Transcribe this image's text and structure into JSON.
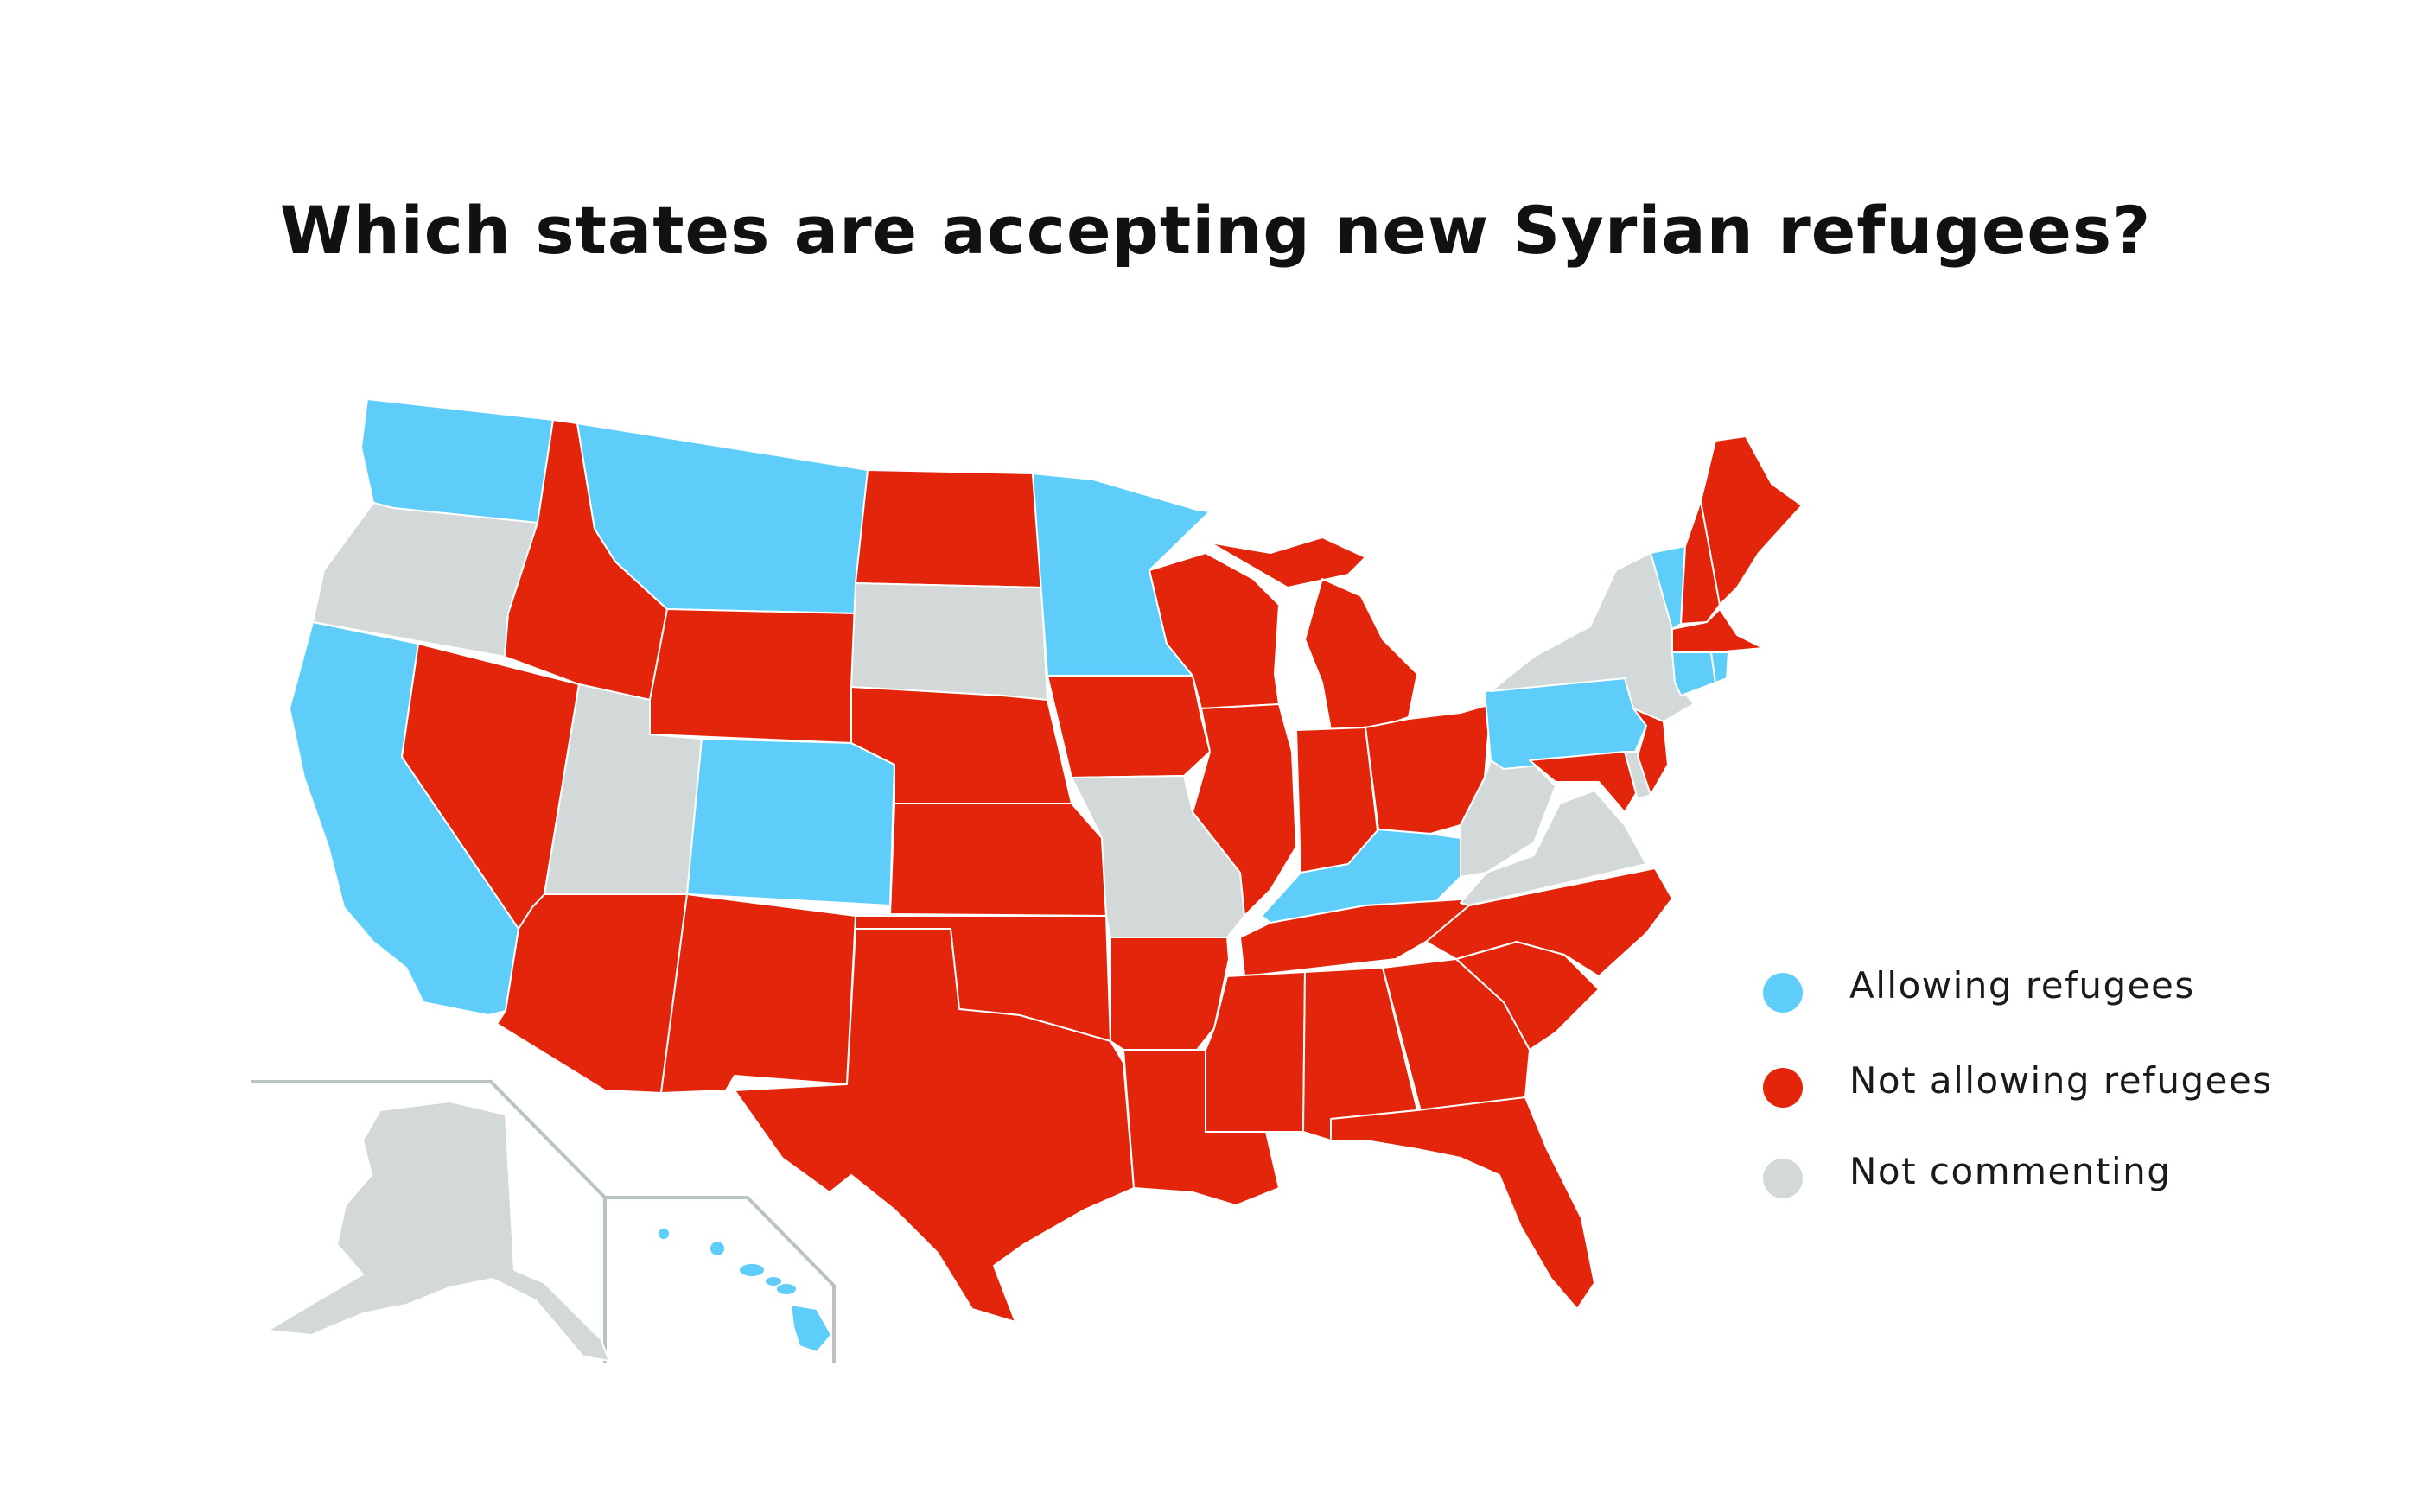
{
  "title": "Which states are accepting new Syrian refugees?",
  "colors": {
    "allowing": "#5fcdf9",
    "not_allowing": "#e3260b",
    "not_commenting": "#d3d9d8",
    "inset_border": "#b9c2c4"
  },
  "legend": [
    {
      "key": "allowing",
      "label": "Allowing refugees"
    },
    {
      "key": "not_allowing",
      "label": "Not allowing refugees"
    },
    {
      "key": "not_commenting",
      "label": "Not commenting"
    }
  ],
  "state_status": {
    "WA": "allowing",
    "OR": "not_commenting",
    "CA": "allowing",
    "NV": "not_allowing",
    "ID": "not_allowing",
    "MT": "allowing",
    "WY": "not_allowing",
    "UT": "not_commenting",
    "CO": "allowing",
    "AZ": "not_allowing",
    "NM": "not_allowing",
    "ND": "not_allowing",
    "SD": "not_commenting",
    "NE": "not_allowing",
    "KS": "not_allowing",
    "OK": "not_allowing",
    "TX": "not_allowing",
    "MN": "allowing",
    "IA": "not_allowing",
    "MO": "not_commenting",
    "AR": "not_allowing",
    "LA": "not_allowing",
    "WI": "not_allowing",
    "IL": "not_allowing",
    "MI": "not_allowing",
    "IN": "not_allowing",
    "OH": "not_allowing",
    "KY": "allowing",
    "TN": "not_allowing",
    "MS": "not_allowing",
    "AL": "not_allowing",
    "GA": "not_allowing",
    "FL": "not_allowing",
    "SC": "not_allowing",
    "NC": "not_allowing",
    "VA": "not_commenting",
    "WV": "not_commenting",
    "MD": "not_allowing",
    "DE": "not_commenting",
    "PA": "allowing",
    "NJ": "not_allowing",
    "NY": "not_commenting",
    "CT": "allowing",
    "RI": "allowing",
    "MA": "not_allowing",
    "VT": "allowing",
    "NH": "not_allowing",
    "ME": "not_allowing",
    "AK": "not_commenting",
    "HI": "allowing"
  }
}
